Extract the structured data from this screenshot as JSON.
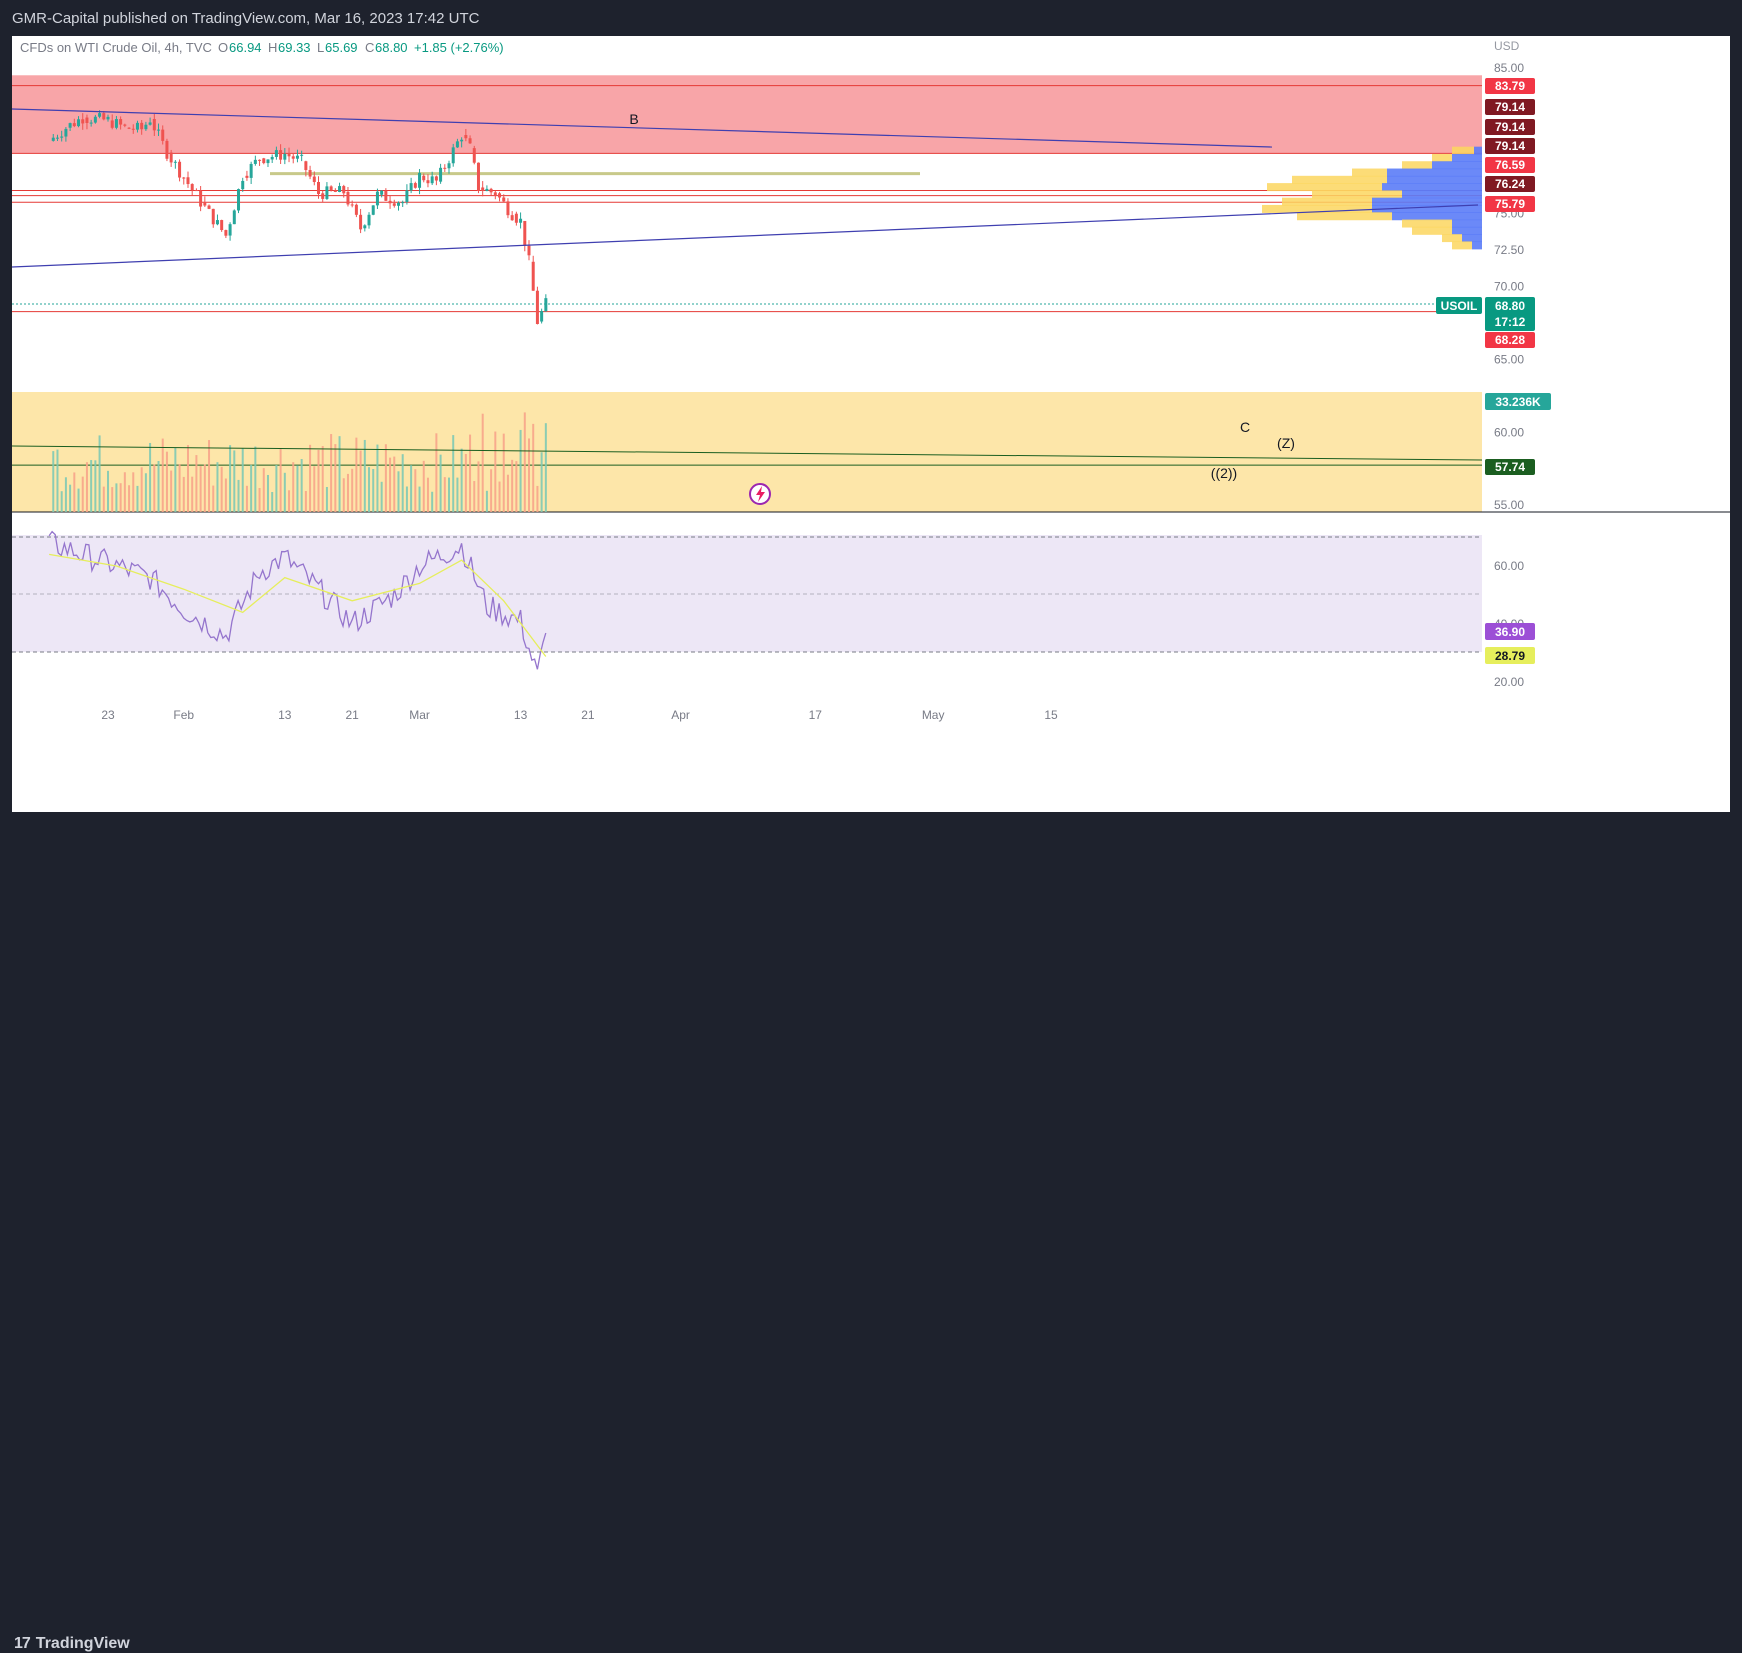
{
  "publisher": "GMR-Capital published on TradingView.com, Mar 16, 2023 17:42 UTC",
  "footer_brand": "TradingView",
  "colors": {
    "up": "#26a69a",
    "down": "#ef5350",
    "supply_zone": "#f8a5a8",
    "volume_zone": "#fde6a9",
    "rsi_bg": "#ede7f6",
    "rsi_line": "#9575cd",
    "rsi_ma": "#e6ee5c",
    "trendline": "#3f3fb0"
  },
  "chart_data": {
    "type": "candlestick",
    "symbol": "CFDs on WTI Crude Oil, 4h, TVC",
    "ohlc": {
      "O": "66.94",
      "H": "69.33",
      "L": "65.69",
      "C": "68.80",
      "change": "+1.85 (+2.76%)"
    },
    "currency": "USD",
    "price_ylim": [
      55,
      85
    ],
    "price_ticks": [
      "85.00",
      "75.00",
      "72.50",
      "70.00",
      "65.00",
      "60.00",
      "55.00"
    ],
    "x_ticks": [
      {
        "label": "23",
        "date": "2023-01-23"
      },
      {
        "label": "Feb",
        "date": "2023-02-01"
      },
      {
        "label": "13",
        "date": "2023-02-13"
      },
      {
        "label": "21",
        "date": "2023-02-21"
      },
      {
        "label": "Mar",
        "date": "2023-03-01"
      },
      {
        "label": "13",
        "date": "2023-03-13"
      },
      {
        "label": "21",
        "date": "2023-03-21"
      },
      {
        "label": "Apr",
        "date": "2023-04-01"
      },
      {
        "label": "17",
        "date": "2023-04-17"
      },
      {
        "label": "May",
        "date": "2023-05-01"
      },
      {
        "label": "15",
        "date": "2023-05-15"
      }
    ],
    "close_path": [
      {
        "date": "2023-01-16",
        "price": 80.0
      },
      {
        "date": "2023-01-18",
        "price": 80.9
      },
      {
        "date": "2023-01-20",
        "price": 81.6
      },
      {
        "date": "2023-01-23",
        "price": 81.4
      },
      {
        "date": "2023-01-25",
        "price": 80.9
      },
      {
        "date": "2023-01-27",
        "price": 80.8
      },
      {
        "date": "2023-01-28",
        "price": 81.5
      },
      {
        "date": "2023-01-30",
        "price": 79.2
      },
      {
        "date": "2023-02-01",
        "price": 77.5
      },
      {
        "date": "2023-02-03",
        "price": 75.8
      },
      {
        "date": "2023-02-06",
        "price": 73.5
      },
      {
        "date": "2023-02-08",
        "price": 77.6
      },
      {
        "date": "2023-02-10",
        "price": 78.8
      },
      {
        "date": "2023-02-13",
        "price": 79.1
      },
      {
        "date": "2023-02-15",
        "price": 78.6
      },
      {
        "date": "2023-02-17",
        "price": 76.4
      },
      {
        "date": "2023-02-20",
        "price": 76.5
      },
      {
        "date": "2023-02-22",
        "price": 74.0
      },
      {
        "date": "2023-02-24",
        "price": 76.3
      },
      {
        "date": "2023-02-27",
        "price": 75.8
      },
      {
        "date": "2023-03-01",
        "price": 77.6
      },
      {
        "date": "2023-03-03",
        "price": 77.2
      },
      {
        "date": "2023-03-06",
        "price": 80.4
      },
      {
        "date": "2023-03-07",
        "price": 79.5
      },
      {
        "date": "2023-03-08",
        "price": 76.8
      },
      {
        "date": "2023-03-10",
        "price": 76.4
      },
      {
        "date": "2023-03-12",
        "price": 75.0
      },
      {
        "date": "2023-03-13",
        "price": 74.5
      },
      {
        "date": "2023-03-14",
        "price": 71.7
      },
      {
        "date": "2023-03-15",
        "price": 67.6
      },
      {
        "date": "2023-03-16",
        "price": 68.8
      }
    ],
    "zones": [
      {
        "name": "supply",
        "from": 79.14,
        "to": 84.5
      }
    ],
    "horizontal_levels": [
      "83.79",
      "79.14",
      "76.59",
      "76.24",
      "75.79",
      "68.28",
      "57.74"
    ],
    "price_labels": [
      {
        "text": "83.79",
        "color": "#f23645"
      },
      {
        "text": "79.14",
        "color": "#801922"
      },
      {
        "text": "79.14",
        "color": "#801922"
      },
      {
        "text": "79.14",
        "color": "#801922"
      },
      {
        "text": "76.59",
        "color": "#f23645"
      },
      {
        "text": "76.24",
        "color": "#801922"
      },
      {
        "text": "75.79",
        "color": "#f23645"
      },
      {
        "text": "68.28",
        "color": "#f23645"
      },
      {
        "text": "57.74",
        "color": "#1b5e20"
      }
    ],
    "last_price": {
      "symbol": "USOIL",
      "price": "68.80",
      "countdown": "17:12"
    },
    "annotations": [
      "B",
      "C",
      "(Z)",
      "((2))"
    ],
    "volume_label": "33.236K",
    "rsi": {
      "ticks": [
        "60.00",
        "40.00",
        "20.00"
      ],
      "value": "36.90",
      "ma_value": "28.79",
      "path": [
        {
          "date": "2023-01-16",
          "v": 68
        },
        {
          "date": "2023-01-20",
          "v": 64
        },
        {
          "date": "2023-01-24",
          "v": 60
        },
        {
          "date": "2023-01-28",
          "v": 56
        },
        {
          "date": "2023-02-01",
          "v": 45
        },
        {
          "date": "2023-02-06",
          "v": 36
        },
        {
          "date": "2023-02-10",
          "v": 58
        },
        {
          "date": "2023-02-13",
          "v": 63
        },
        {
          "date": "2023-02-17",
          "v": 52
        },
        {
          "date": "2023-02-21",
          "v": 40
        },
        {
          "date": "2023-02-26",
          "v": 50
        },
        {
          "date": "2023-03-01",
          "v": 60
        },
        {
          "date": "2023-03-06",
          "v": 67
        },
        {
          "date": "2023-03-09",
          "v": 46
        },
        {
          "date": "2023-03-13",
          "v": 41
        },
        {
          "date": "2023-03-15",
          "v": 22
        },
        {
          "date": "2023-03-16",
          "v": 36.9
        }
      ],
      "ma_path": [
        {
          "date": "2023-01-16",
          "v": 64
        },
        {
          "date": "2023-01-24",
          "v": 60
        },
        {
          "date": "2023-02-01",
          "v": 52
        },
        {
          "date": "2023-02-08",
          "v": 44
        },
        {
          "date": "2023-02-13",
          "v": 56
        },
        {
          "date": "2023-02-21",
          "v": 48
        },
        {
          "date": "2023-03-01",
          "v": 54
        },
        {
          "date": "2023-03-06",
          "v": 62
        },
        {
          "date": "2023-03-11",
          "v": 48
        },
        {
          "date": "2023-03-16",
          "v": 28.79
        }
      ]
    }
  }
}
